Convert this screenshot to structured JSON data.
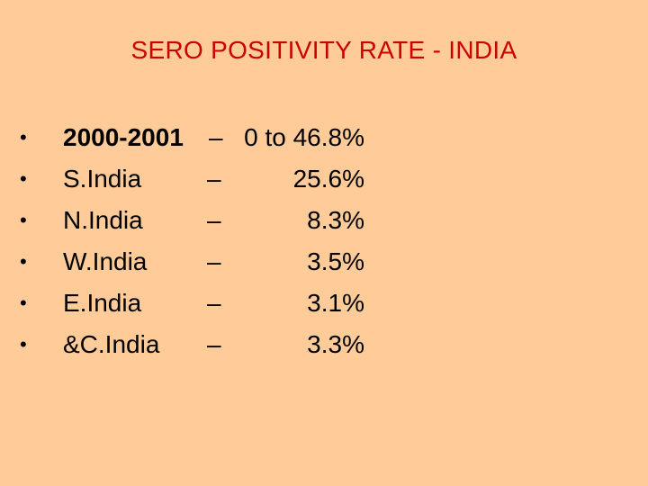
{
  "slide": {
    "title": "SERO POSITIVITY RATE - INDIA",
    "title_color": "#CC0000",
    "background_color": "#FFCC99",
    "bullet_symbol": "•",
    "items": [
      {
        "label": "2000-2001",
        "dash": "–",
        "value": "0 to 46.8%"
      },
      {
        "label": "S.India",
        "dash": "–",
        "value": "25.6%"
      },
      {
        "label": "N.India",
        "dash": "–",
        "value": "8.3%"
      },
      {
        "label": "W.India",
        "dash": "–",
        "value": "3.5%"
      },
      {
        "label": "E.India",
        "dash": "–",
        "value": "3.1%"
      },
      {
        "label": "&C.India",
        "dash": "–",
        "value": "3.3%"
      }
    ]
  }
}
